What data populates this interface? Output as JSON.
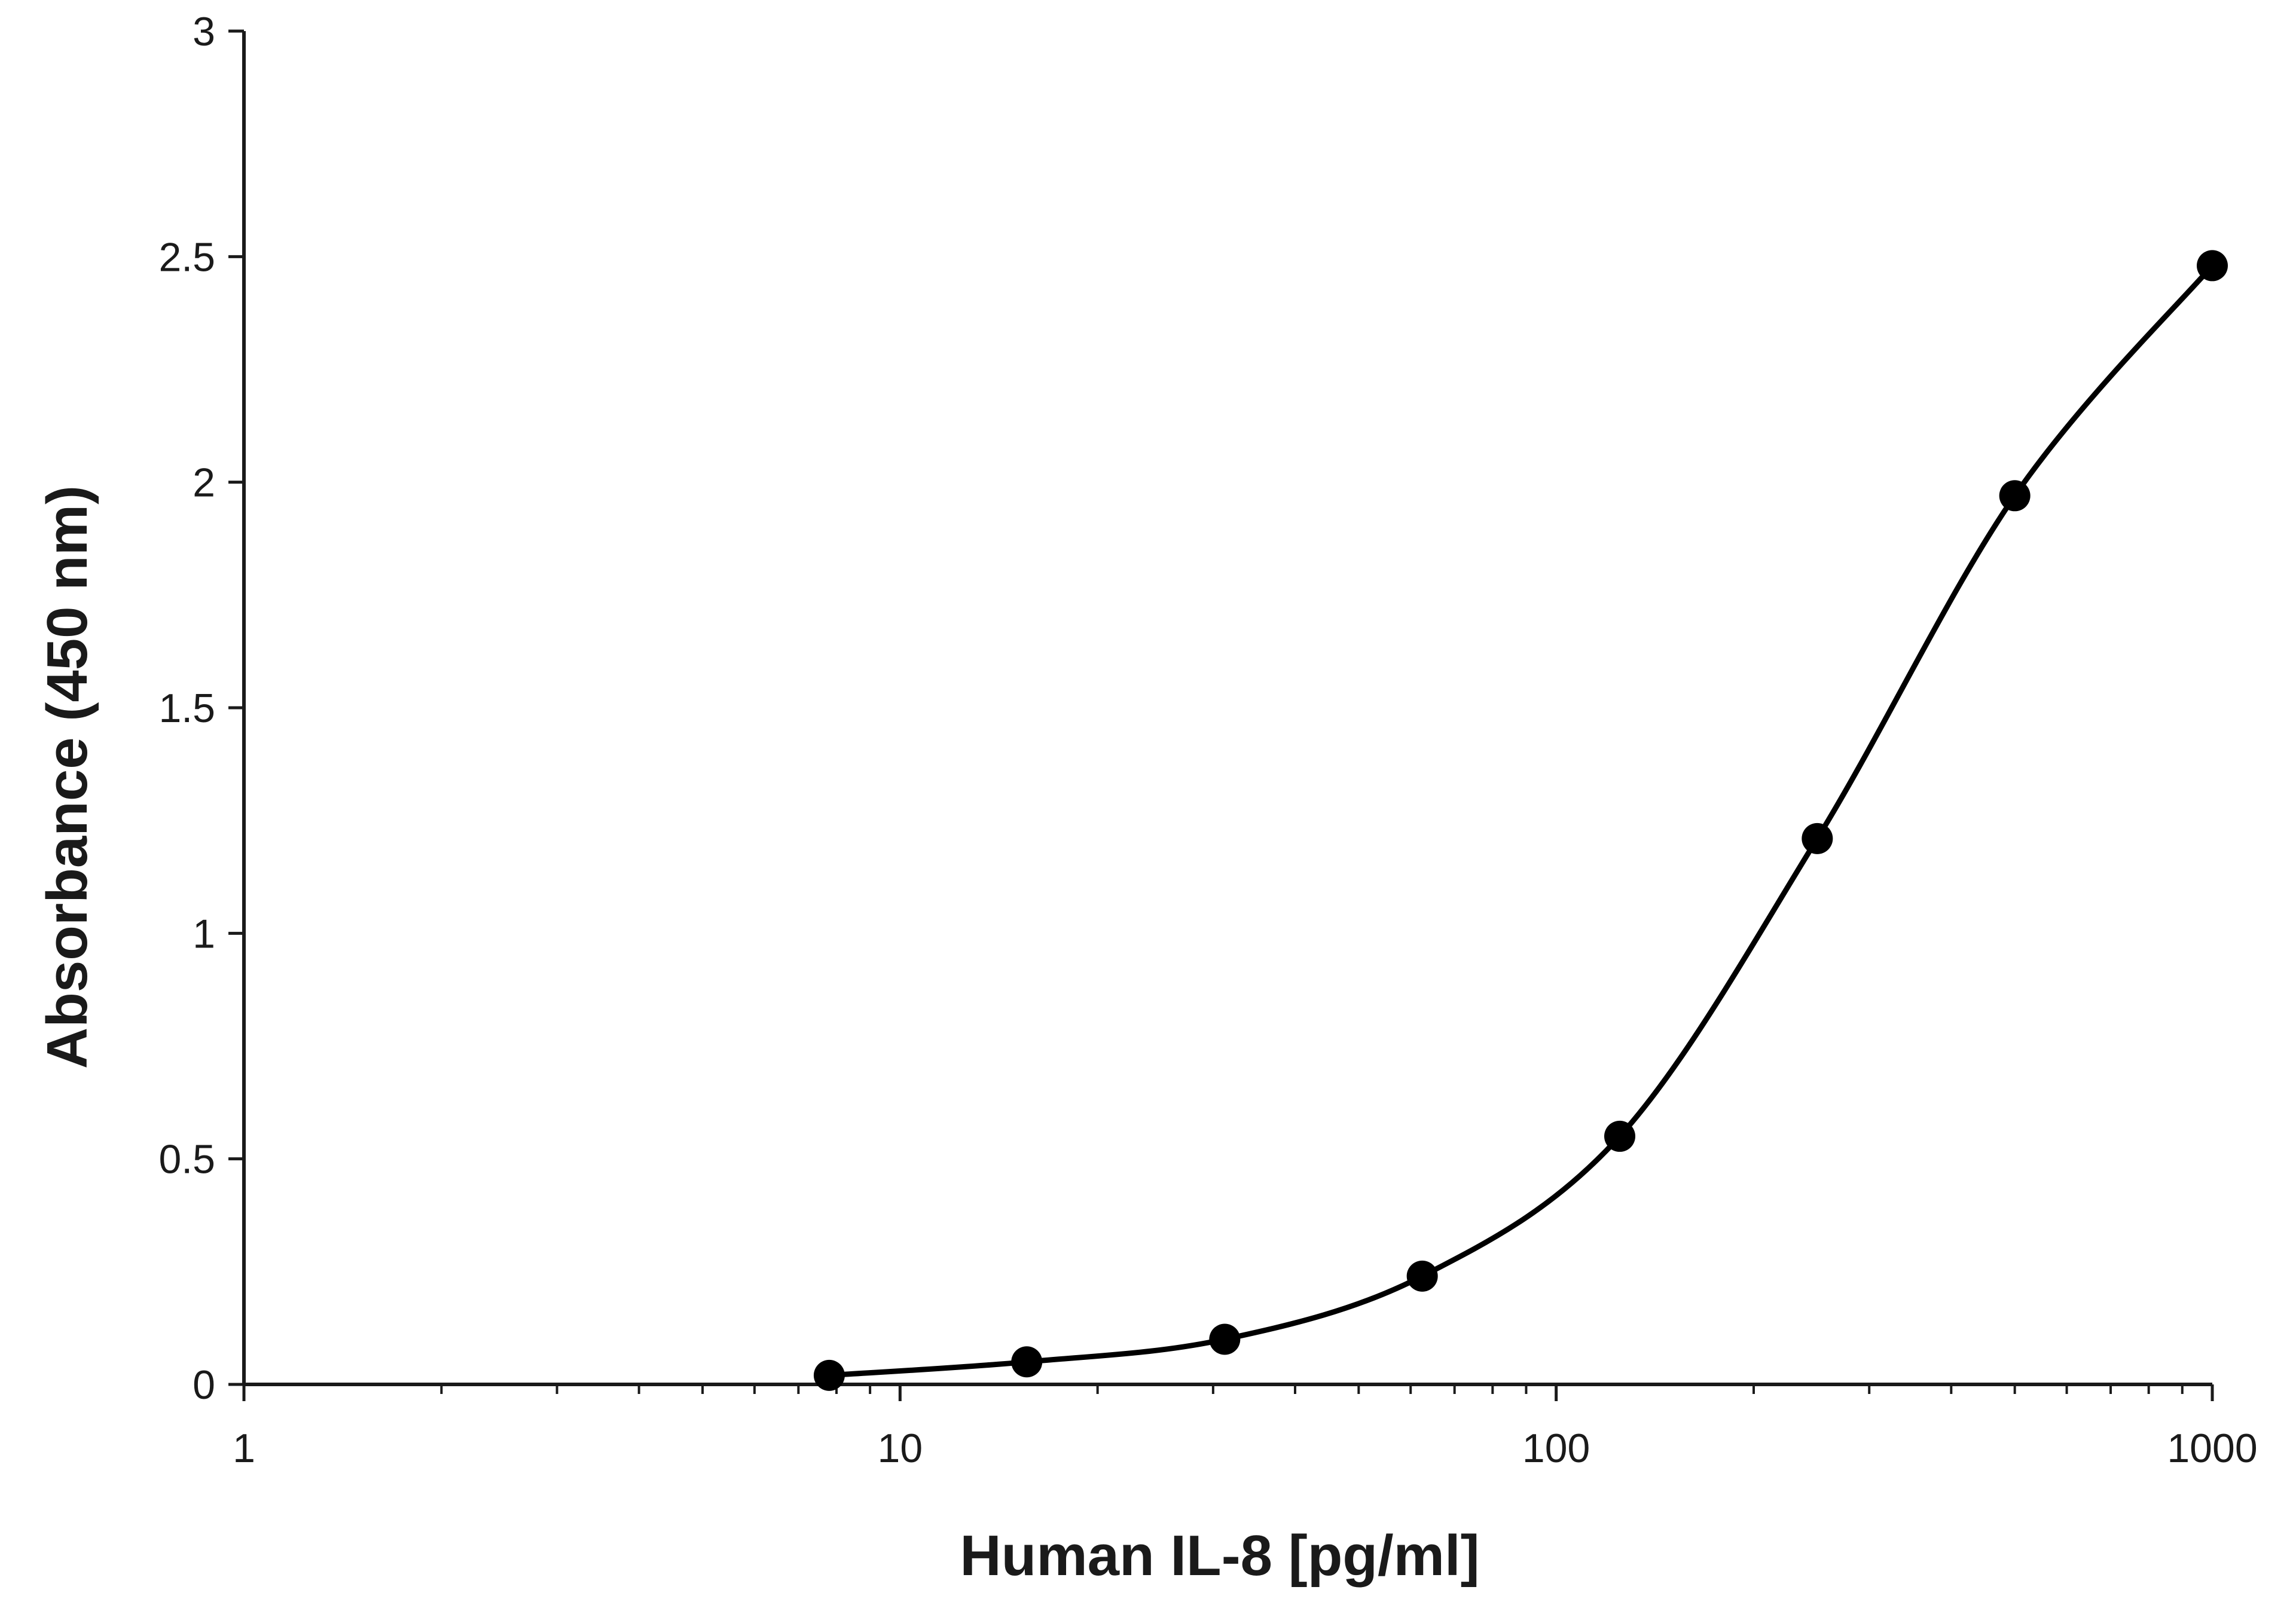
{
  "chart_data": {
    "type": "scatter",
    "title": "",
    "xlabel": "Human IL-8 [pg/ml]",
    "ylabel": "Absorbance (450 nm)",
    "x_scale": "log",
    "xlim": [
      1,
      1000
    ],
    "ylim": [
      0,
      3
    ],
    "x_ticks": [
      1,
      10,
      100,
      1000
    ],
    "x_tick_labels": [
      "1",
      "10",
      "100",
      "1000"
    ],
    "y_ticks": [
      0,
      0.5,
      1,
      1.5,
      2,
      2.5,
      3
    ],
    "y_tick_labels": [
      "0",
      "0.5",
      "1",
      "1.5",
      "2",
      "2.5",
      "3"
    ],
    "grid": false,
    "legend": "none",
    "series": [
      {
        "color": "#000000",
        "marker": "circle",
        "line": "smooth",
        "x": [
          7.8,
          15.6,
          31.25,
          62.5,
          125,
          250,
          500,
          1000
        ],
        "y": [
          0.02,
          0.05,
          0.1,
          0.24,
          0.55,
          1.21,
          1.97,
          2.48
        ]
      }
    ]
  }
}
